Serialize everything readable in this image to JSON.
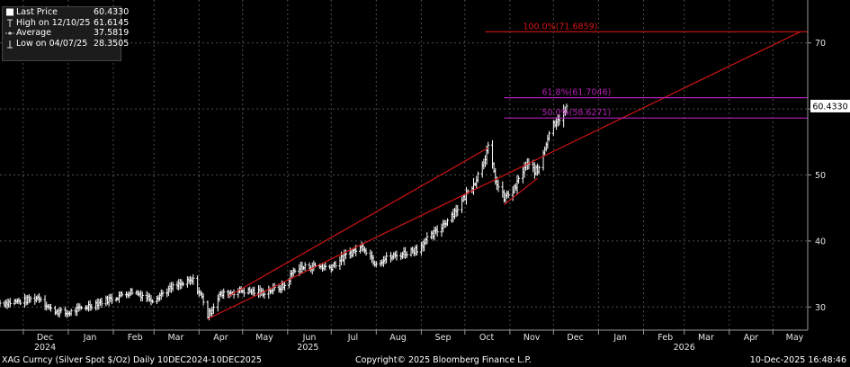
{
  "colors": {
    "background": "#000000",
    "grid": "#4d4d4d",
    "price": "#ffffff",
    "channel": "#d21414",
    "fib_high": "#d21414",
    "fib_mid": "#b31fb3",
    "last_price_box": "#ffffff"
  },
  "legend": {
    "items": [
      {
        "label": "Last Price",
        "value": "60.4330",
        "icon": "filled-square-icon"
      },
      {
        "label": "High on 12/10/25",
        "value": "61.6145",
        "icon": "high-marker-icon"
      },
      {
        "label": "Average",
        "value": "37.5819",
        "icon": "average-line-icon"
      },
      {
        "label": "Low on 04/07/25",
        "value": "28.3505",
        "icon": "low-marker-icon"
      }
    ]
  },
  "footer": {
    "left": "XAG Curncy (Silver Spot  $/Oz) Daily 10DEC2024-10DEC2025",
    "center": "Copyright© 2025 Bloomberg Finance L.P.",
    "right": "10-Dec-2025 16:48:46"
  },
  "chart_data": {
    "type": "ohlc",
    "x_axis": {
      "months": [
        "Dec",
        "Jan",
        "Feb",
        "Mar",
        "Apr",
        "May",
        "Jun",
        "Jul",
        "Aug",
        "Sep",
        "Oct",
        "Nov",
        "Dec",
        "Jan",
        "Feb",
        "Mar",
        "Apr",
        "May"
      ],
      "month_start_dates": [
        "2024-12-01",
        "2025-01-01",
        "2025-02-01",
        "2025-03-01",
        "2025-04-01",
        "2025-05-01",
        "2025-06-01",
        "2025-07-01",
        "2025-08-01",
        "2025-09-01",
        "2025-10-01",
        "2025-11-01",
        "2025-12-01",
        "2026-01-01",
        "2026-02-01",
        "2026-03-01",
        "2026-04-01",
        "2026-05-01"
      ],
      "years": [
        {
          "label": "2024",
          "date": "2024-12-16"
        },
        {
          "label": "2025",
          "date": "2025-06-15"
        },
        {
          "label": "2026",
          "date": "2026-03-01"
        }
      ],
      "range": [
        "2024-11-15",
        "2026-05-25"
      ]
    },
    "y_axis": {
      "ticks": [
        30,
        40,
        50,
        60,
        70
      ],
      "range": [
        26.5,
        76.5
      ],
      "side": "right"
    },
    "grid": true,
    "last_price": 60.433,
    "last_price_label": "60.4330",
    "price_anchors": [
      [
        "2024-11-15",
        30.6
      ],
      [
        "2024-12-01",
        30.9
      ],
      [
        "2024-12-12",
        31.5
      ],
      [
        "2024-12-20",
        29.6
      ],
      [
        "2024-12-31",
        29.0
      ],
      [
        "2025-01-15",
        30.2
      ],
      [
        "2025-01-31",
        31.3
      ],
      [
        "2025-02-14",
        32.4
      ],
      [
        "2025-02-28",
        31.2
      ],
      [
        "2025-03-14",
        33.0
      ],
      [
        "2025-03-28",
        34.0
      ],
      [
        "2025-04-04",
        31.0
      ],
      [
        "2025-04-07",
        28.6
      ],
      [
        "2025-04-15",
        31.8
      ],
      [
        "2025-04-30",
        32.5
      ],
      [
        "2025-05-15",
        32.2
      ],
      [
        "2025-05-30",
        33.2
      ],
      [
        "2025-06-06",
        35.8
      ],
      [
        "2025-06-20",
        36.2
      ],
      [
        "2025-06-30",
        36.0
      ],
      [
        "2025-07-14",
        38.2
      ],
      [
        "2025-07-23",
        39.2
      ],
      [
        "2025-07-31",
        36.8
      ],
      [
        "2025-08-15",
        37.8
      ],
      [
        "2025-08-29",
        38.8
      ],
      [
        "2025-09-12",
        41.5
      ],
      [
        "2025-09-26",
        45.0
      ],
      [
        "2025-10-09",
        49.5
      ],
      [
        "2025-10-17",
        54.0
      ],
      [
        "2025-10-23",
        48.5
      ],
      [
        "2025-10-28",
        46.5
      ],
      [
        "2025-11-04",
        47.8
      ],
      [
        "2025-11-12",
        51.5
      ],
      [
        "2025-11-20",
        50.5
      ],
      [
        "2025-11-28",
        56.5
      ],
      [
        "2025-12-03",
        58.5
      ],
      [
        "2025-12-08",
        59.2
      ],
      [
        "2025-12-10",
        60.43
      ]
    ],
    "trend_channel": [
      {
        "name": "lower",
        "from": [
          "2025-04-07",
          28.2
        ],
        "to": [
          "2026-05-20",
          71.7
        ]
      },
      {
        "name": "upper",
        "from": [
          "2025-04-21",
          31.6
        ],
        "to": [
          "2025-10-17",
          54.1
        ]
      },
      {
        "name": "base",
        "from": [
          "2025-10-28",
          45.5
        ],
        "to": [
          "2025-11-20",
          49.5
        ]
      }
    ],
    "fibonacci": [
      {
        "label": "100.0%(71.6859)",
        "value": 71.6859,
        "color": "fib_high",
        "start": "2025-10-15",
        "end": "2026-05-25"
      },
      {
        "label": "61.8%(61.7046)",
        "value": 61.7046,
        "color": "fib_mid",
        "start": "2025-10-28",
        "end": "2026-05-25"
      },
      {
        "label": "50.0%(58.6271)",
        "value": 58.6271,
        "color": "fib_mid",
        "start": "2025-10-28",
        "end": "2026-05-25"
      }
    ]
  }
}
